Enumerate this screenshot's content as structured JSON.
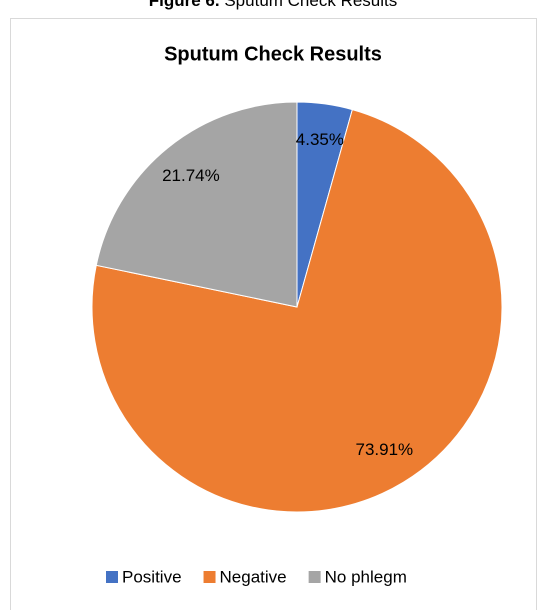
{
  "caption": {
    "label": "Figure 6.",
    "text": "Sputum Check Results"
  },
  "chart_data": {
    "type": "pie",
    "title": "Sputum Check Results",
    "categories": [
      "Positive",
      "Negative",
      "No phlegm"
    ],
    "values": [
      4.35,
      73.91,
      21.74
    ],
    "value_labels": [
      "4.35%",
      "73.91%",
      "21.74%"
    ],
    "colors": [
      "#4472c4",
      "#ed7d31",
      "#a5a5a5"
    ],
    "legend": "bottom"
  }
}
